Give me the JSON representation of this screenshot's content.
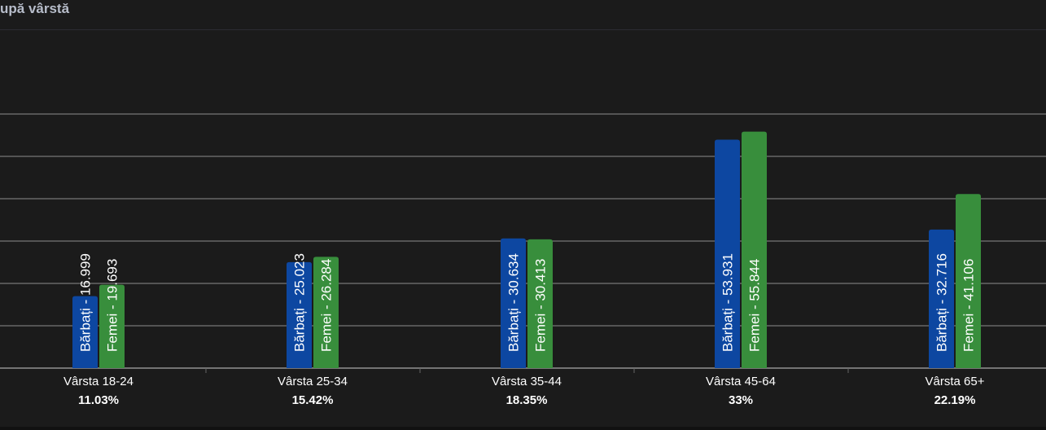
{
  "title": "upă vârstă",
  "colors": {
    "background": "#1b1b1b",
    "men": "#0d47a1",
    "women": "#388e3c",
    "grid": "#8c8c8c",
    "text": "#ffffff"
  },
  "chart_data": {
    "type": "bar",
    "title": "upă vârstă",
    "xlabel": "",
    "ylabel": "",
    "ylim": [
      0,
      60
    ],
    "grid": true,
    "legend": "none",
    "categories": [
      "Vârsta 18-24",
      "Vârsta 25-34",
      "Vârsta 35-44",
      "Vârsta 45-64",
      "Vârsta 65+"
    ],
    "percentages": [
      "11.03%",
      "15.42%",
      "18.35%",
      "33%",
      "22.19%"
    ],
    "series": [
      {
        "name": "Bărbați",
        "values": [
          16.999,
          25.023,
          30.634,
          53.931,
          32.716
        ],
        "labels": [
          "Bărbați - 16.999",
          "Bărbați - 25.023",
          "Bărbați - 30.634",
          "Bărbați - 53.931",
          "Bărbați - 32.716"
        ]
      },
      {
        "name": "Femei",
        "values": [
          19.693,
          26.284,
          30.413,
          55.844,
          41.106
        ],
        "labels": [
          "Femei - 19.693",
          "Femei - 26.284",
          "Femei - 30.413",
          "Femei - 55.844",
          "Femei - 41.106"
        ]
      }
    ]
  }
}
